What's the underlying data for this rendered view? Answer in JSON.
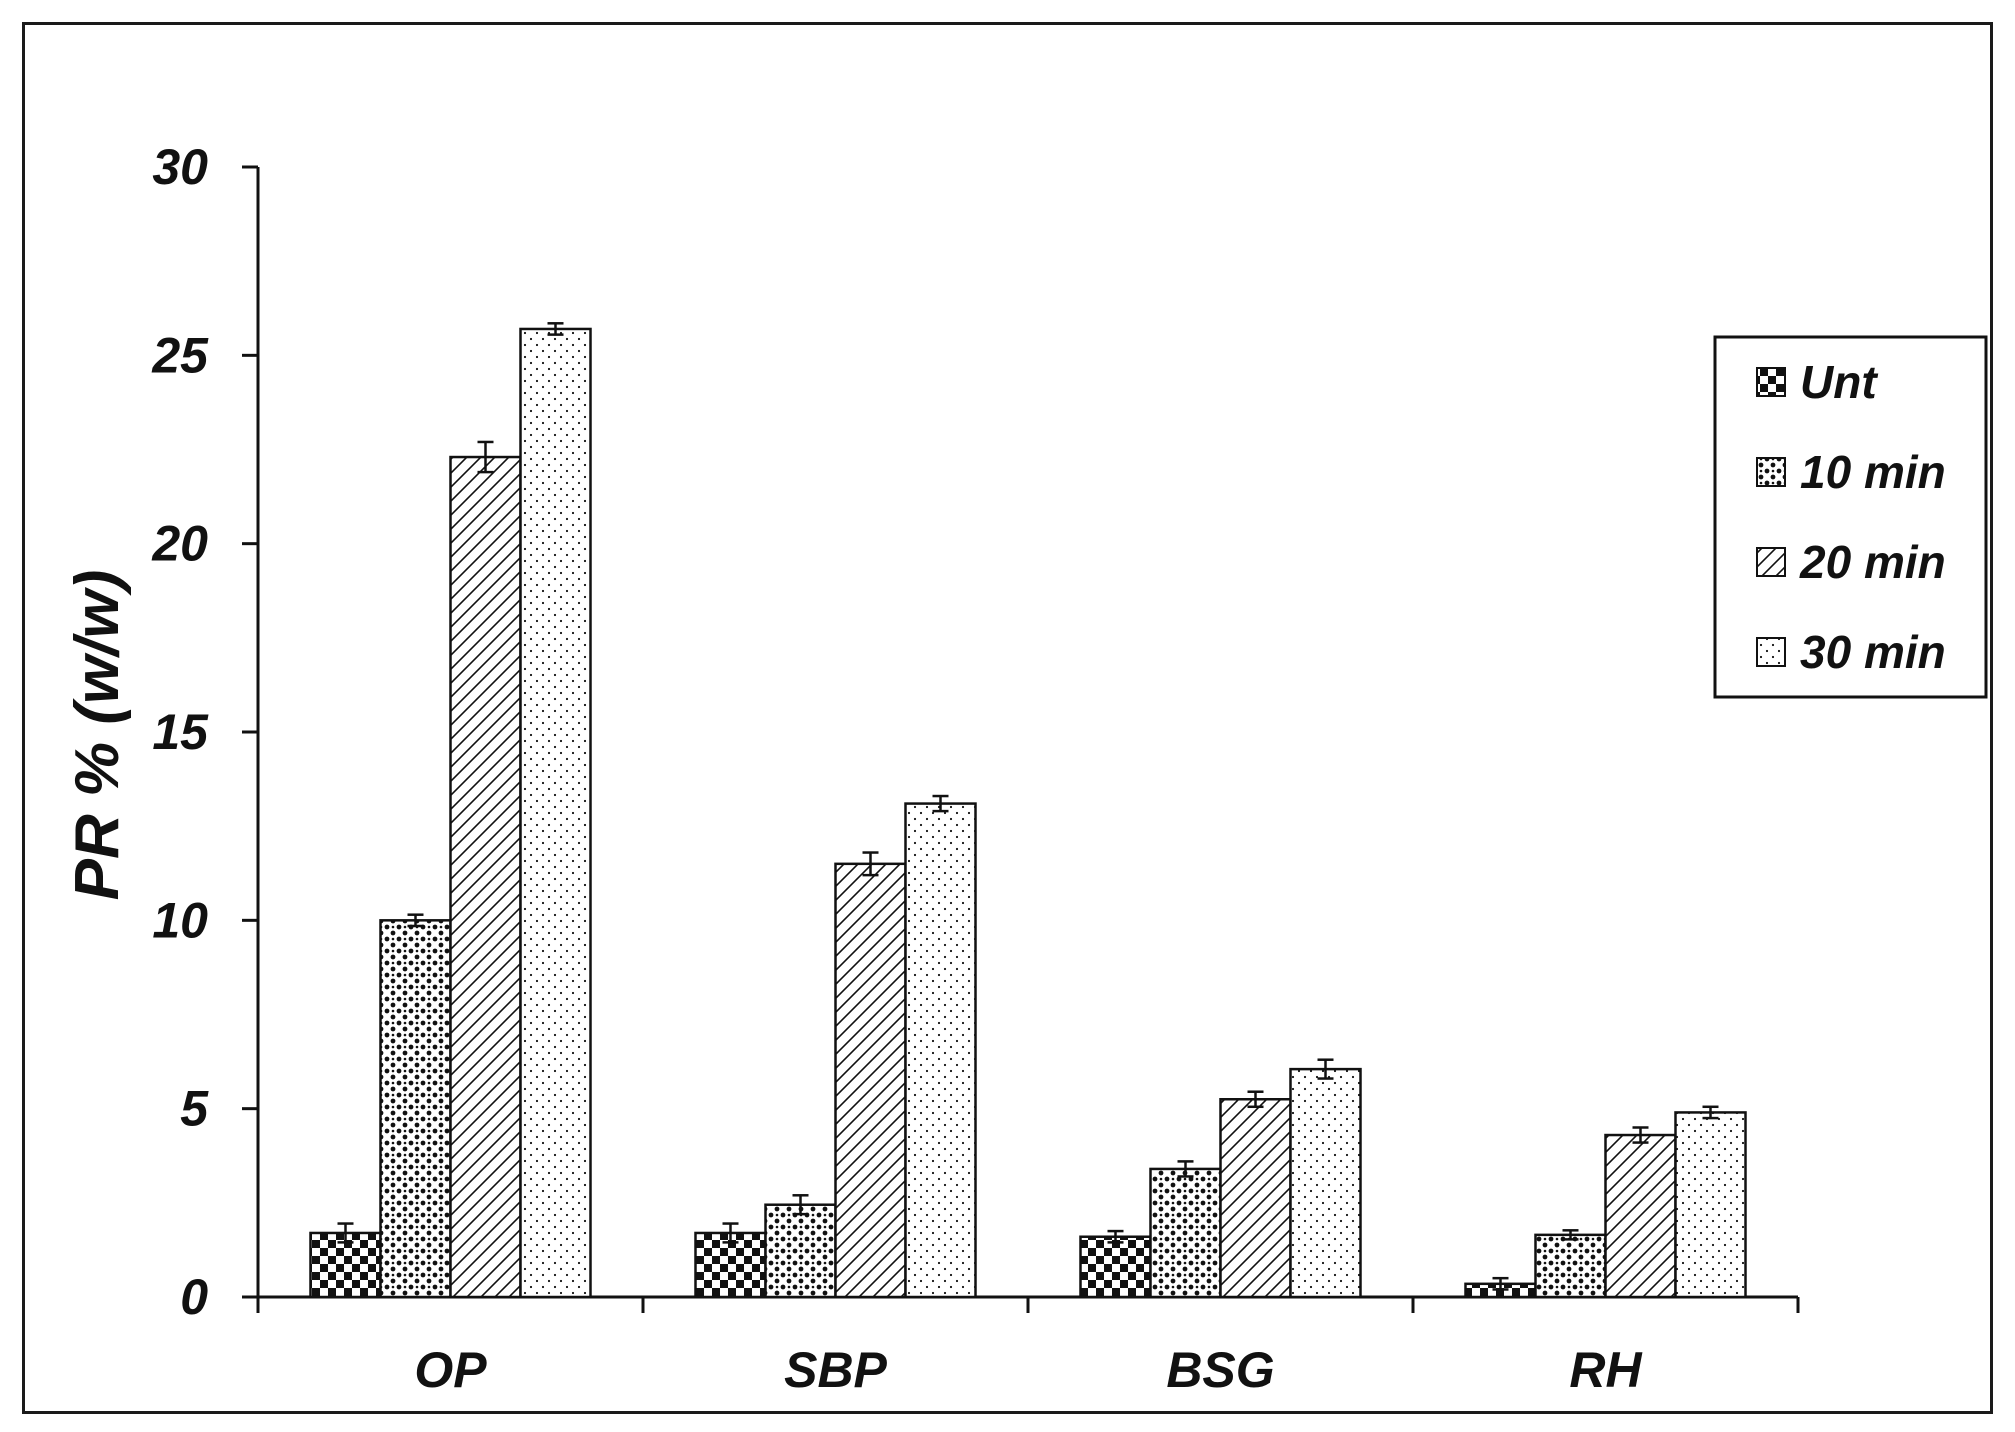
{
  "chart_data": {
    "type": "bar",
    "ylabel": "PR % (w/w)",
    "xlabel": "",
    "categories": [
      "OP",
      "SBP",
      "BSG",
      "RH"
    ],
    "ylim": [
      0,
      30
    ],
    "yticks": [
      0,
      5,
      10,
      15,
      20,
      25,
      30
    ],
    "series": [
      {
        "name": "Unt",
        "pattern": "checker",
        "values": [
          1.7,
          1.7,
          1.6,
          0.35
        ],
        "errors": [
          0.25,
          0.25,
          0.15,
          0.15
        ]
      },
      {
        "name": "10 min",
        "pattern": "dots-dense",
        "values": [
          10.0,
          2.45,
          3.4,
          1.65
        ],
        "errors": [
          0.15,
          0.25,
          0.2,
          0.12
        ]
      },
      {
        "name": "20 min",
        "pattern": "diagonal",
        "values": [
          22.3,
          11.5,
          5.25,
          4.3
        ],
        "errors": [
          0.4,
          0.3,
          0.2,
          0.2
        ]
      },
      {
        "name": "30 min",
        "pattern": "dots-sparse",
        "values": [
          25.7,
          13.1,
          6.05,
          4.9
        ],
        "errors": [
          0.15,
          0.2,
          0.25,
          0.15
        ]
      }
    ],
    "legend_position": "right",
    "grid": false,
    "colors": {
      "bar_stroke": "#111111",
      "background": "#ffffff"
    }
  }
}
